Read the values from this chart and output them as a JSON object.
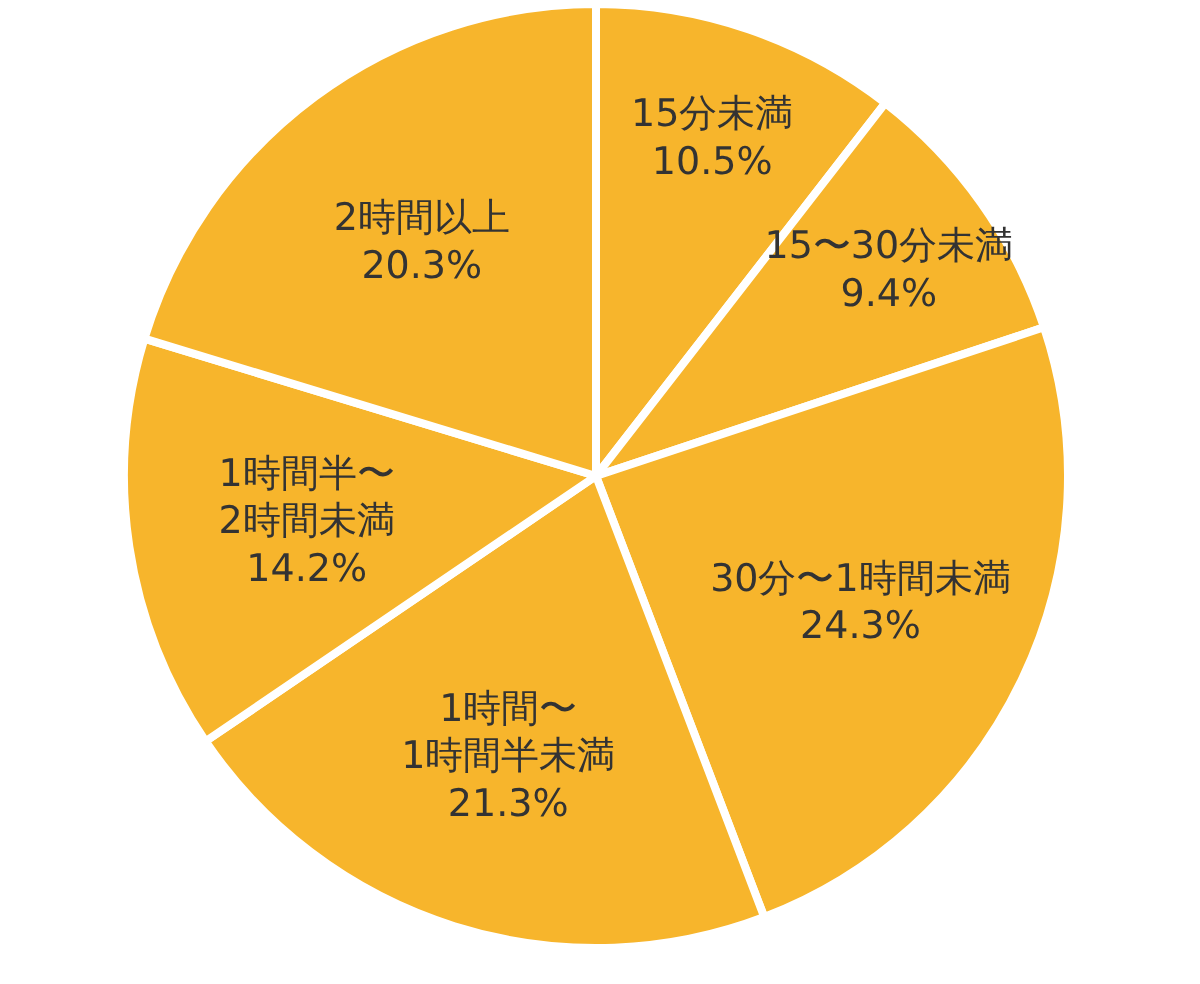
{
  "chart_data": {
    "type": "pie",
    "categories": [
      "15分未満",
      "15〜30分未満",
      "30分〜1時間未満",
      "1時間〜\n1時間半未満",
      "1時間半〜\n2時間未満",
      "2時間以上"
    ],
    "values": [
      10.5,
      9.4,
      24.3,
      21.3,
      14.2,
      20.3
    ],
    "colors": [
      "#f7b52c",
      "#f7b52c",
      "#f7b52c",
      "#f7b52c",
      "#f7b52c",
      "#f7b52c"
    ],
    "value_labels": [
      "10.5%",
      "9.4%",
      "24.3%",
      "21.3%",
      "14.2%",
      "20.3%"
    ]
  }
}
